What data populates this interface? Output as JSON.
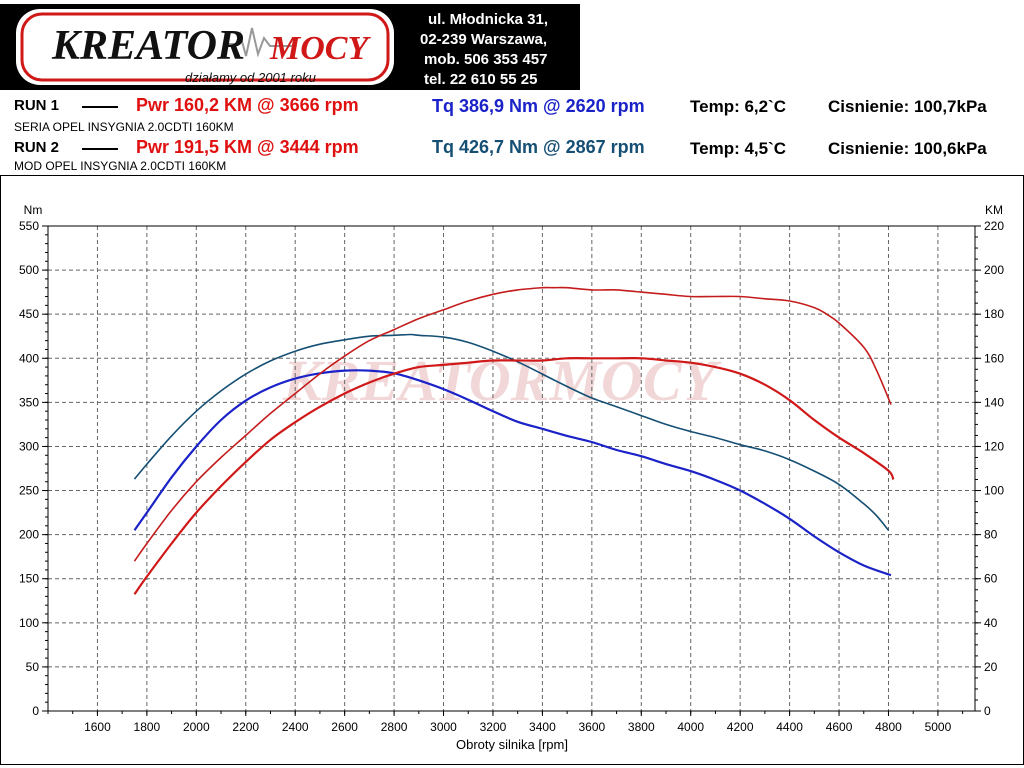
{
  "header": {
    "brand_first": "KREATOR",
    "brand_second": "MOCY",
    "slogan": "działamy od 2001 roku",
    "address_line1": "ul. Młodnicka 31,",
    "address_line2": "02-239  Warszawa,",
    "mobile": "mob.  506 353 457",
    "phone": "tel.  22 610 55 25"
  },
  "runs": [
    {
      "label": "RUN 1",
      "description": "SERIA OPEL INSYGNIA 2.0CDTI 160KM",
      "power_text": "Pwr  160,2 KM @ 3666 rpm",
      "torque_text": "Tq 386,9 Nm @ 2620 rpm",
      "temp_text": "Temp: 6,2`C",
      "pressure_text": "Cisnienie: 100,7kPa"
    },
    {
      "label": "RUN 2",
      "description": "MOD OPEL INSYGNIA 2.0CDTI 160KM",
      "power_text": "Pwr  191,5 KM @ 3444 rpm",
      "torque_text": "Tq 426,7 Nm @ 2867 rpm",
      "temp_text": "Temp: 4,5`C",
      "pressure_text": "Cisnienie: 100,6kPa"
    }
  ],
  "colors": {
    "torque_run1": "#1a22c8",
    "torque_run2": "#154f74",
    "power_run1": "#d01818",
    "power_run2": "#c41c1c",
    "grid": "#666666",
    "plot_border": "#000000"
  },
  "chart_data": {
    "type": "line",
    "xlabel": "Obroty silnika [rpm]",
    "ylabel_left": "Nm",
    "ylabel_right": "KM",
    "xlim": [
      1400,
      5150
    ],
    "ylim_left": [
      0,
      550
    ],
    "ylim_right": [
      0,
      220
    ],
    "x_ticks": [
      1600,
      1800,
      2000,
      2200,
      2400,
      2600,
      2800,
      3000,
      3200,
      3400,
      3600,
      3800,
      4000,
      4200,
      4400,
      4600,
      4800,
      5000
    ],
    "y_left_ticks": [
      0,
      50,
      100,
      150,
      200,
      250,
      300,
      350,
      400,
      450,
      500,
      550
    ],
    "y_right_ticks": [
      0,
      20,
      40,
      60,
      80,
      100,
      120,
      140,
      160,
      180,
      200,
      220
    ],
    "grid": true,
    "watermark": "KREATORMOCY",
    "series": [
      {
        "axis": "left",
        "x": [
          1750,
          1800,
          1900,
          2000,
          2100,
          2200,
          2300,
          2400,
          2500,
          2600,
          2700,
          2800,
          2900,
          3000,
          3100,
          3200,
          3300,
          3400,
          3500,
          3600,
          3700,
          3800,
          3900,
          4000,
          4100,
          4200,
          4300,
          4400,
          4500,
          4600,
          4700,
          4810
        ],
        "y": [
          205,
          225,
          265,
          300,
          330,
          352,
          367,
          377,
          383,
          386,
          386,
          383,
          375,
          365,
          353,
          340,
          328,
          320,
          312,
          305,
          296,
          289,
          280,
          272,
          262,
          250,
          235,
          218,
          198,
          180,
          165,
          154
        ]
      },
      {
        "axis": "left",
        "x": [
          1750,
          1800,
          1900,
          2000,
          2100,
          2200,
          2300,
          2400,
          2500,
          2600,
          2700,
          2800,
          2867,
          2900,
          3000,
          3100,
          3200,
          3300,
          3400,
          3500,
          3600,
          3700,
          3800,
          3900,
          4000,
          4100,
          4200,
          4300,
          4400,
          4500,
          4600,
          4700,
          4750,
          4800
        ],
        "y": [
          263,
          280,
          312,
          340,
          363,
          382,
          397,
          408,
          416,
          421,
          425,
          426,
          427,
          426,
          424,
          418,
          408,
          396,
          382,
          368,
          355,
          345,
          335,
          325,
          317,
          310,
          302,
          295,
          285,
          272,
          257,
          235,
          222,
          205
        ]
      },
      {
        "axis": "right",
        "x": [
          1750,
          1800,
          1900,
          2000,
          2100,
          2200,
          2300,
          2400,
          2500,
          2600,
          2700,
          2800,
          2900,
          3000,
          3100,
          3200,
          3300,
          3400,
          3500,
          3600,
          3666,
          3700,
          3800,
          3900,
          4000,
          4100,
          4200,
          4300,
          4400,
          4500,
          4600,
          4700,
          4800,
          4820
        ],
        "y": [
          53,
          61,
          76,
          90,
          102,
          113,
          123,
          131,
          138,
          144,
          149,
          153,
          156,
          157,
          158,
          159,
          159,
          159,
          160,
          160,
          160,
          160,
          160,
          159,
          158,
          156,
          153,
          148,
          141,
          132,
          124,
          117,
          109,
          105
        ]
      },
      {
        "axis": "right",
        "x": [
          1750,
          1800,
          1900,
          2000,
          2100,
          2200,
          2300,
          2400,
          2500,
          2600,
          2700,
          2800,
          2900,
          3000,
          3100,
          3200,
          3300,
          3400,
          3444,
          3500,
          3600,
          3700,
          3800,
          3900,
          4000,
          4100,
          4200,
          4300,
          4400,
          4500,
          4550,
          4600,
          4700,
          4750,
          4810
        ],
        "y": [
          68,
          76,
          91,
          104,
          115,
          125,
          135,
          144,
          153,
          161,
          168,
          173,
          178,
          182,
          186,
          189,
          191,
          192,
          192,
          192,
          191,
          191,
          190,
          189,
          188,
          188,
          188,
          187,
          186,
          183,
          180,
          176,
          165,
          155,
          139
        ]
      }
    ]
  }
}
